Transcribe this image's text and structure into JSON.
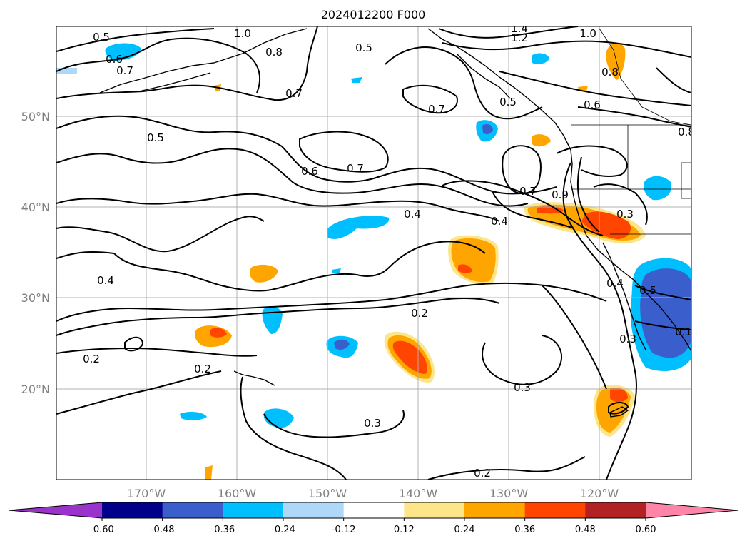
{
  "title": "2024012200 F000",
  "map": {
    "lat_labels": [
      "50°N",
      "40°N",
      "30°N",
      "20°N"
    ],
    "lon_labels": [
      "170°W",
      "160°W",
      "150°W",
      "140°W",
      "130°W",
      "120°W"
    ],
    "contour_labels": [
      "0.5",
      "1.0",
      "1.4",
      "1.2",
      "1.0",
      "0.6",
      "0.7",
      "0.8",
      "0.5",
      "0.8",
      "0.7",
      "0.7",
      "0.5",
      "0.6",
      "0.8",
      "0.5",
      "0.6",
      "0.7",
      "0.7",
      "0.4",
      "0.4",
      "0.9",
      "0.3",
      "0.4",
      "0.5",
      "0.4",
      "0.2",
      "0.2",
      "0.2",
      "0.3",
      "0.3",
      "0.3",
      "0.2",
      "0.1"
    ]
  },
  "colorbar": {
    "tick_labels": [
      "-0.60",
      "-0.48",
      "-0.36",
      "-0.24",
      "-0.12",
      "0.12",
      "0.24",
      "0.36",
      "0.48",
      "0.60"
    ],
    "colors": [
      "#9933cc",
      "#00008b",
      "#3a5fcd",
      "#00bfff",
      "#add8f7",
      "#ffffff",
      "#fde68a",
      "#ffa500",
      "#ff4500",
      "#b22222",
      "#ff85a8"
    ]
  }
}
